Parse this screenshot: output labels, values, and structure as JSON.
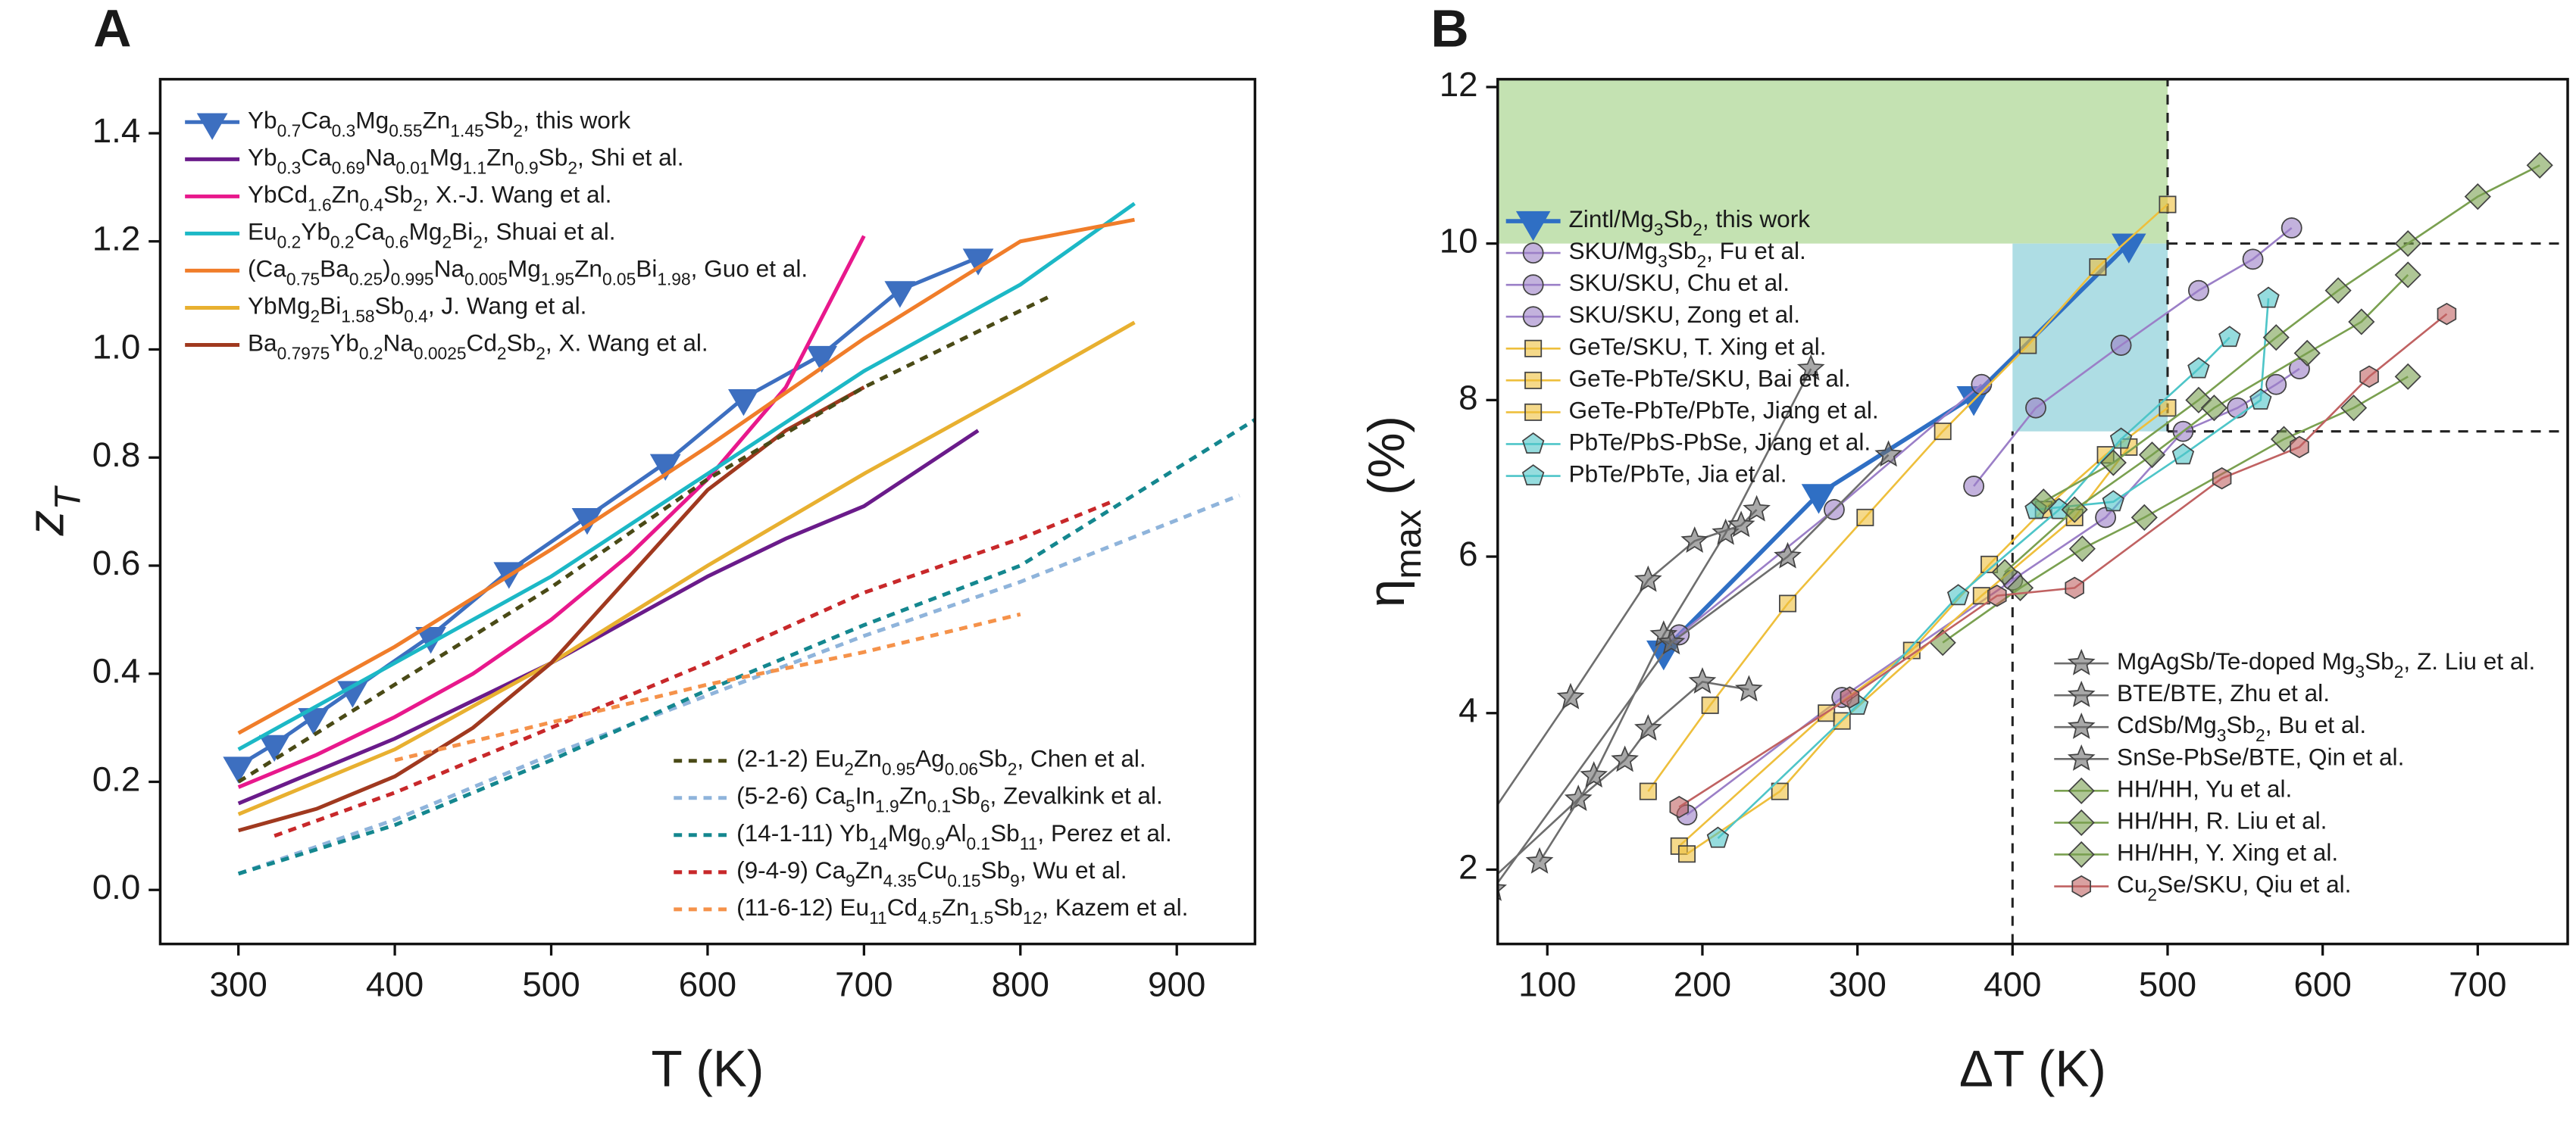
{
  "chart_data": [
    {
      "type": "line",
      "panel_label": "A",
      "x_label": "T (K)",
      "y_label": "zT",
      "xlim": [
        250,
        950
      ],
      "ylim": [
        -0.1,
        1.5
      ],
      "xticks": [
        300,
        400,
        500,
        600,
        700,
        800,
        900
      ],
      "yticks": [
        {
          "value": 0,
          "label": "0.0"
        },
        0.2,
        0.4,
        0.6,
        0.8,
        {
          "value": 1,
          "label": "1.0"
        },
        1.2,
        1.4
      ],
      "series": [
        {
          "name": "Yb0.7Ca0.3Mg0.55Zn1.45Sb2, this work",
          "color": "#3d6fc0",
          "marker": "triangle-down",
          "legend": "upper-left",
          "x": [
            300,
            323,
            348,
            373,
            423,
            473,
            523,
            573,
            623,
            673,
            723,
            773
          ],
          "values": [
            0.23,
            0.27,
            0.32,
            0.37,
            0.47,
            0.59,
            0.69,
            0.79,
            0.91,
            0.99,
            1.11,
            1.17
          ]
        },
        {
          "name": "Yb0.3Ca0.69Na0.01Mg1.1Zn0.9Sb2, Shi et al.",
          "color": "#6a1b8a",
          "legend": "upper-left",
          "x": [
            300,
            350,
            400,
            450,
            500,
            550,
            600,
            650,
            700,
            773
          ],
          "values": [
            0.16,
            0.22,
            0.28,
            0.35,
            0.42,
            0.5,
            0.58,
            0.65,
            0.71,
            0.85
          ]
        },
        {
          "name": "YbCd1.6Zn0.4Sb2, X.-J. Wang et al.",
          "color": "#e8188c",
          "legend": "upper-left",
          "x": [
            300,
            350,
            400,
            450,
            500,
            550,
            600,
            650,
            700
          ],
          "values": [
            0.19,
            0.25,
            0.32,
            0.4,
            0.5,
            0.62,
            0.76,
            0.93,
            1.21
          ]
        },
        {
          "name": "Eu0.2Yb0.2Ca0.6Mg2Bi2, Shuai et al.",
          "color": "#1cb8c6",
          "legend": "upper-left",
          "x": [
            300,
            400,
            500,
            600,
            700,
            800,
            873
          ],
          "values": [
            0.26,
            0.42,
            0.58,
            0.77,
            0.96,
            1.12,
            1.27
          ]
        },
        {
          "name": "(Ca0.75Ba0.25)0.995Na0.005Mg1.95Zn0.05Bi1.98, Guo et al.",
          "color": "#f07d2a",
          "legend": "upper-left",
          "x": [
            300,
            400,
            500,
            600,
            700,
            800,
            873
          ],
          "values": [
            0.29,
            0.45,
            0.63,
            0.82,
            1.02,
            1.2,
            1.24
          ]
        },
        {
          "name": "YbMg2Bi1.58Sb0.4, J. Wang et al.",
          "color": "#e8b030",
          "legend": "upper-left",
          "x": [
            300,
            400,
            500,
            600,
            700,
            800,
            873
          ],
          "values": [
            0.14,
            0.26,
            0.42,
            0.6,
            0.77,
            0.93,
            1.05
          ]
        },
        {
          "name": "Ba0.7975Yb0.2Na0.0025Cd2Sb2, X. Wang et al.",
          "color": "#a0391f",
          "legend": "upper-left",
          "x": [
            300,
            350,
            400,
            450,
            500,
            550,
            600,
            650,
            700
          ],
          "values": [
            0.11,
            0.15,
            0.21,
            0.3,
            0.42,
            0.58,
            0.74,
            0.85,
            0.93
          ]
        },
        {
          "name": "(2-1-2) Eu2Zn0.95Ag0.06Sb2, Chen et al.",
          "color": "#4a4a16",
          "dash": true,
          "legend": "lower-right",
          "x": [
            300,
            400,
            500,
            600,
            700,
            820
          ],
          "values": [
            0.2,
            0.38,
            0.56,
            0.76,
            0.93,
            1.1
          ]
        },
        {
          "name": "(5-2-6) Ca5In1.9Zn0.1Sb6, Zevalkink et al.",
          "color": "#8fb4db",
          "dash": true,
          "legend": "lower-right",
          "x": [
            300,
            400,
            500,
            600,
            700,
            800,
            940
          ],
          "values": [
            0.03,
            0.13,
            0.25,
            0.36,
            0.47,
            0.57,
            0.73
          ]
        },
        {
          "name": "(14-1-11) Yb14Mg0.9Al0.1Sb11, Perez et al.",
          "color": "#14878f",
          "dash": true,
          "legend": "lower-right",
          "x": [
            300,
            400,
            500,
            600,
            700,
            800,
            950
          ],
          "values": [
            0.03,
            0.12,
            0.24,
            0.37,
            0.49,
            0.6,
            0.87
          ]
        },
        {
          "name": "(9-4-9) Ca9Zn4.35Cu0.15Sb9, Wu et al.",
          "color": "#c8282a",
          "dash": true,
          "legend": "lower-right",
          "x": [
            323,
            400,
            500,
            600,
            700,
            800,
            860
          ],
          "values": [
            0.1,
            0.18,
            0.3,
            0.42,
            0.55,
            0.65,
            0.72
          ]
        },
        {
          "name": "(11-6-12) Eu11Cd4.5Zn1.5Sb12, Kazem et al.",
          "color": "#f5924a",
          "dash": true,
          "legend": "lower-right",
          "x": [
            400,
            500,
            600,
            700,
            800
          ],
          "values": [
            0.24,
            0.31,
            0.38,
            0.44,
            0.51
          ]
        }
      ]
    },
    {
      "type": "line",
      "panel_label": "B",
      "x_label": "ΔT (K)",
      "y_label": "ηmax (%)",
      "xlim": [
        68,
        758
      ],
      "ylim": [
        1.05,
        12.1
      ],
      "xticks": [
        100,
        200,
        300,
        400,
        500,
        600,
        700
      ],
      "yticks": [
        2,
        4,
        6,
        8,
        10,
        12
      ],
      "regions": [
        {
          "x": [
            68,
            500
          ],
          "y": [
            10,
            12.1
          ],
          "color": "#c4e2b2"
        },
        {
          "x": [
            400,
            500
          ],
          "y": [
            7.6,
            10
          ],
          "color": "#aedde4"
        }
      ],
      "ref_lines": [
        {
          "x": [
            500,
            758
          ],
          "y": [
            10,
            10
          ]
        },
        {
          "x": [
            500,
            758
          ],
          "y": [
            7.6,
            7.6
          ]
        },
        {
          "x": [
            400,
            400
          ],
          "y": [
            1.05,
            7.6
          ]
        },
        {
          "x": [
            500,
            500
          ],
          "y": [
            7.6,
            12.1
          ]
        }
      ],
      "series": [
        {
          "name": "Zintl/Mg3Sb2, this work",
          "color": "#2f6fc4",
          "marker": "triangle-down",
          "legend": "upper-left",
          "x": [
            175,
            275,
            375,
            475
          ],
          "values": [
            4.8,
            6.8,
            8.05,
            10
          ]
        },
        {
          "name": "SKU/Mg3Sb2, Fu et al.",
          "color": "#9b7fc7",
          "marker": "circle",
          "legend": "upper-left",
          "x": [
            185,
            285,
            380
          ],
          "values": [
            5,
            6.6,
            8.2
          ]
        },
        {
          "name": "SKU/SKU, Chu et al.",
          "color": "#9b7fc7",
          "marker": "circle",
          "legend": "upper-left",
          "x": [
            375,
            415,
            470,
            520,
            555,
            580
          ],
          "values": [
            6.9,
            7.9,
            8.7,
            9.4,
            9.8,
            10.2
          ]
        },
        {
          "name": "SKU/SKU, Zong et al.",
          "color": "#9b7fc7",
          "marker": "circle",
          "legend": "upper-left",
          "x": [
            190,
            290,
            400,
            460,
            510,
            545,
            570,
            585
          ],
          "values": [
            2.7,
            4.2,
            5.7,
            6.5,
            7.6,
            7.9,
            8.2,
            8.4
          ]
        },
        {
          "name": "GeTe/SKU, T. Xing et al.",
          "color": "#eebf3c",
          "marker": "square",
          "legend": "upper-left",
          "x": [
            165,
            205,
            255,
            305,
            355,
            410,
            455,
            500
          ],
          "values": [
            3,
            4.1,
            5.4,
            6.5,
            7.6,
            8.7,
            9.7,
            10.5
          ]
        },
        {
          "name": "GeTe-PbTe/SKU, Bai et al.",
          "color": "#eebf3c",
          "marker": "square",
          "legend": "upper-left",
          "x": [
            185,
            280,
            335,
            385,
            420,
            460,
            500
          ],
          "values": [
            2.3,
            4,
            4.8,
            5.9,
            6.6,
            7.3,
            7.9
          ]
        },
        {
          "name": "GeTe-PbTe/PbTe, Jiang et al.",
          "color": "#eebf3c",
          "marker": "square",
          "legend": "upper-left",
          "x": [
            190,
            250,
            290,
            380,
            440,
            475
          ],
          "values": [
            2.2,
            3,
            3.9,
            5.5,
            6.5,
            7.4
          ]
        },
        {
          "name": "PbTe/PbS-PbSe, Jiang et al.",
          "color": "#4ec5c8",
          "marker": "pentagon",
          "legend": "upper-left",
          "x": [
            210,
            300,
            365,
            430,
            470,
            520,
            540
          ],
          "values": [
            2.4,
            4.1,
            5.5,
            6.6,
            7.5,
            8.4,
            8.8
          ]
        },
        {
          "name": "PbTe/PbTe, Jia et al.",
          "color": "#4ec5c8",
          "marker": "pentagon",
          "legend": "upper-left",
          "x": [
            415,
            465,
            510,
            560,
            565
          ],
          "values": [
            6.6,
            6.7,
            7.3,
            8,
            9.3
          ]
        },
        {
          "name": "MgAgSb/Te-doped Mg3Sb2, Z. Liu et al.",
          "color": "#6e6e6e",
          "marker": "star",
          "legend": "lower-right",
          "x": [
            60,
            120,
            150,
            165,
            200,
            230
          ],
          "values": [
            1.8,
            2.9,
            3.4,
            3.8,
            4.4,
            4.3
          ]
        },
        {
          "name": "BTE/BTE, Zhu et al.",
          "color": "#6e6e6e",
          "marker": "star",
          "legend": "lower-right",
          "x": [
            95,
            130,
            175,
            215,
            270
          ],
          "values": [
            2.1,
            3.2,
            5,
            6.3,
            8.4
          ]
        },
        {
          "name": "CdSb/Mg3Sb2, Bu et al.",
          "color": "#6e6e6e",
          "marker": "star",
          "legend": "lower-right",
          "x": [
            60,
            115,
            165,
            195,
            225,
            235
          ],
          "values": [
            2.6,
            4.2,
            5.7,
            6.2,
            6.4,
            6.6
          ]
        },
        {
          "name": "SnSe-PbSe/BTE, Qin et al.",
          "color": "#6e6e6e",
          "marker": "star",
          "legend": "lower-right",
          "x": [
            65,
            180,
            255,
            320
          ],
          "values": [
            1.75,
            4.9,
            6,
            7.3
          ]
        },
        {
          "name": "HH/HH, Yu et al.",
          "color": "#7aa050",
          "marker": "diamond",
          "legend": "lower-right",
          "x": [
            355,
            405,
            445,
            485,
            575,
            620,
            655
          ],
          "values": [
            4.9,
            5.6,
            6.1,
            6.5,
            7.5,
            7.9,
            8.3
          ]
        },
        {
          "name": "HH/HH, R. Liu et al.",
          "color": "#7aa050",
          "marker": "diamond",
          "legend": "lower-right",
          "x": [
            420,
            465,
            520,
            570,
            610,
            655,
            700,
            740
          ],
          "values": [
            6.7,
            7.2,
            8,
            8.8,
            9.4,
            10,
            10.6,
            11
          ]
        },
        {
          "name": "HH/HH, Y. Xing et al.",
          "color": "#7aa050",
          "marker": "diamond",
          "legend": "lower-right",
          "x": [
            395,
            440,
            490,
            530,
            590,
            625,
            655
          ],
          "values": [
            5.8,
            6.6,
            7.3,
            7.9,
            8.6,
            9,
            9.6
          ]
        },
        {
          "name": "Cu2Se/SKU, Qiu et al.",
          "color": "#c06262",
          "marker": "hexagon",
          "legend": "lower-right",
          "x": [
            185,
            295,
            390,
            440,
            535,
            585,
            630,
            680
          ],
          "values": [
            2.8,
            4.2,
            5.5,
            5.6,
            7,
            7.4,
            8.3,
            9.1
          ]
        }
      ]
    }
  ]
}
